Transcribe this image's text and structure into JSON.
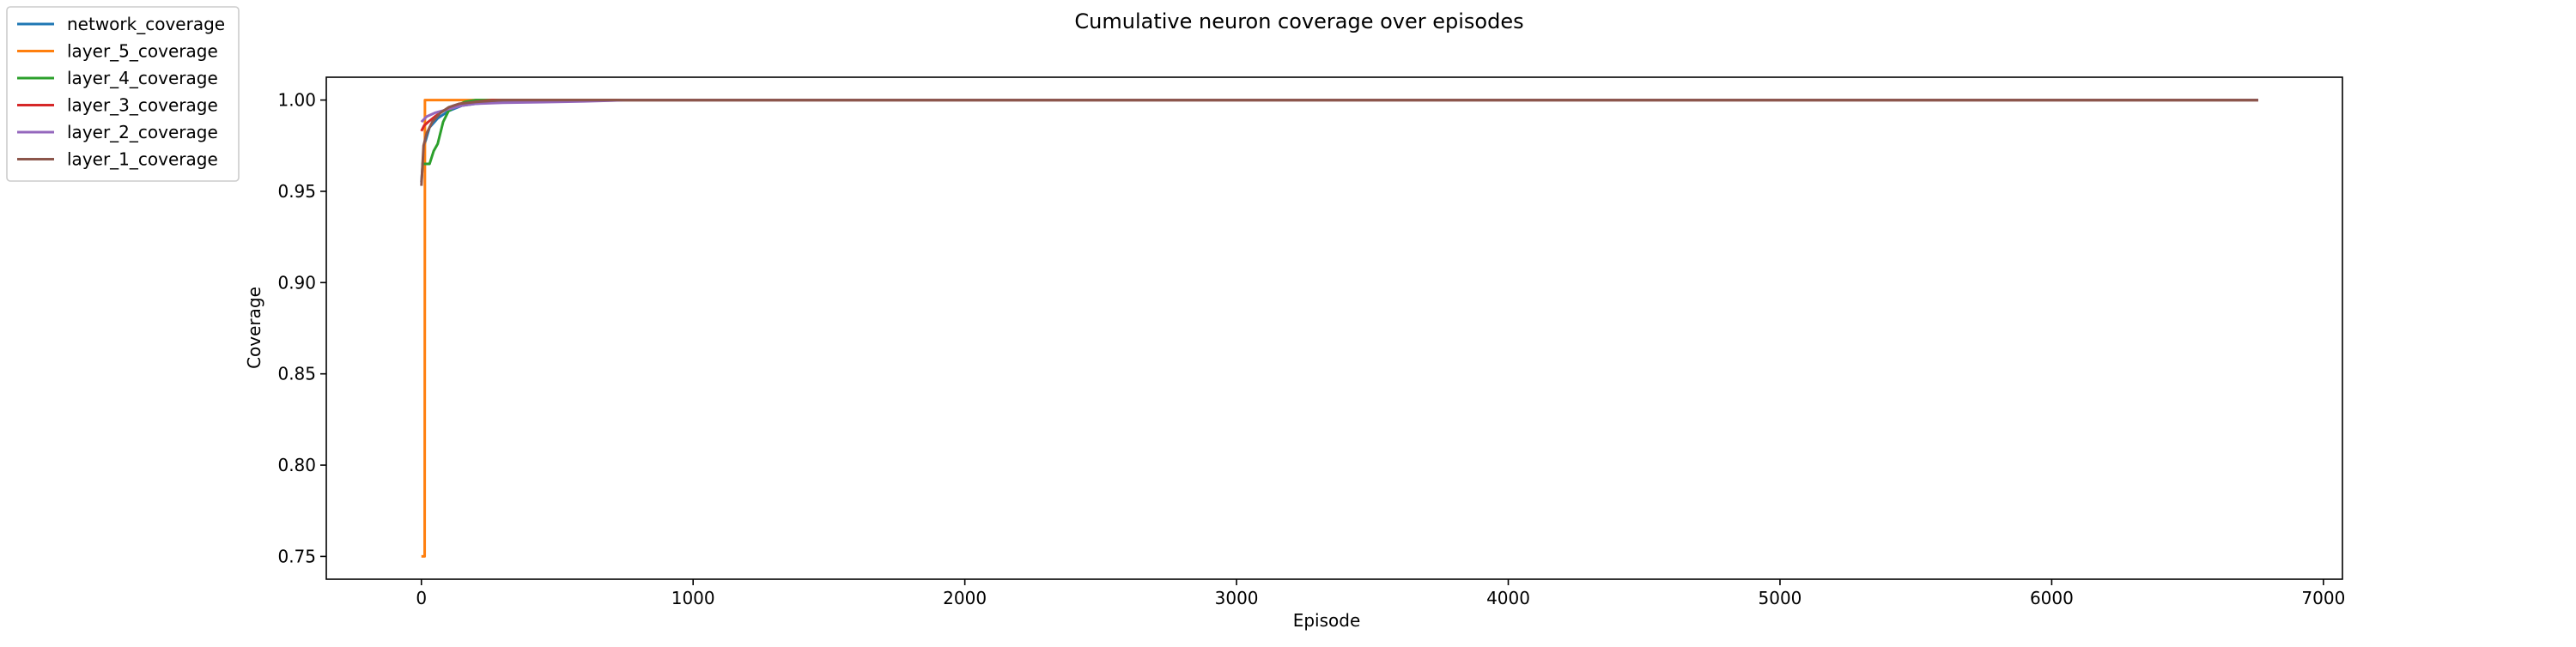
{
  "chart_data": {
    "type": "line",
    "title": "Cumulative neuron coverage over episodes",
    "xlabel": "Episode",
    "ylabel": "Coverage",
    "xlim": [
      -350,
      7070
    ],
    "ylim": [
      0.7375,
      1.0125
    ],
    "xticks": [
      0,
      1000,
      2000,
      3000,
      4000,
      5000,
      6000,
      7000
    ],
    "xtick_labels": [
      "0",
      "1000",
      "2000",
      "3000",
      "4000",
      "5000",
      "6000",
      "7000"
    ],
    "yticks": [
      0.75,
      0.8,
      0.85,
      0.9,
      0.95,
      1.0
    ],
    "ytick_labels": [
      "0.75",
      "0.80",
      "0.85",
      "0.90",
      "0.95",
      "1.00"
    ],
    "grid": false,
    "legend_position": "outside-top-left",
    "series": [
      {
        "name": "network_coverage",
        "color": "#1f77b4",
        "x": [
          0,
          10,
          30,
          60,
          100,
          150,
          200,
          300,
          500,
          700,
          750,
          6760
        ],
        "y": [
          0.955,
          0.975,
          0.985,
          0.99,
          0.994,
          0.997,
          0.998,
          0.999,
          0.9995,
          1.0,
          1.0,
          1.0
        ]
      },
      {
        "name": "layer_5_coverage",
        "color": "#ff7f0e",
        "x": [
          0,
          12,
          13,
          6760
        ],
        "y": [
          0.75,
          0.75,
          1.0,
          1.0
        ]
      },
      {
        "name": "layer_4_coverage",
        "color": "#2ca02c",
        "x": [
          0,
          30,
          45,
          60,
          80,
          100,
          130,
          160,
          200,
          6760
        ],
        "y": [
          0.965,
          0.965,
          0.972,
          0.976,
          0.988,
          0.994,
          0.997,
          0.999,
          1.0,
          1.0
        ]
      },
      {
        "name": "layer_3_coverage",
        "color": "#d62728",
        "x": [
          0,
          10,
          25,
          50,
          80,
          120,
          160,
          200,
          260,
          6760
        ],
        "y": [
          0.983,
          0.986,
          0.988,
          0.991,
          0.994,
          0.997,
          0.998,
          0.999,
          1.0,
          1.0
        ]
      },
      {
        "name": "layer_2_coverage",
        "color": "#9467bd",
        "x": [
          0,
          20,
          50,
          100,
          150,
          200,
          300,
          500,
          600,
          700,
          750,
          6760
        ],
        "y": [
          0.988,
          0.991,
          0.993,
          0.995,
          0.997,
          0.998,
          0.9985,
          0.999,
          0.9993,
          0.9997,
          1.0,
          1.0
        ]
      },
      {
        "name": "layer_1_coverage",
        "color": "#8c564b",
        "x": [
          0,
          8,
          20,
          40,
          70,
          100,
          140,
          200,
          300,
          6760
        ],
        "y": [
          0.953,
          0.975,
          0.982,
          0.988,
          0.993,
          0.996,
          0.998,
          0.999,
          1.0,
          1.0
        ]
      }
    ]
  }
}
